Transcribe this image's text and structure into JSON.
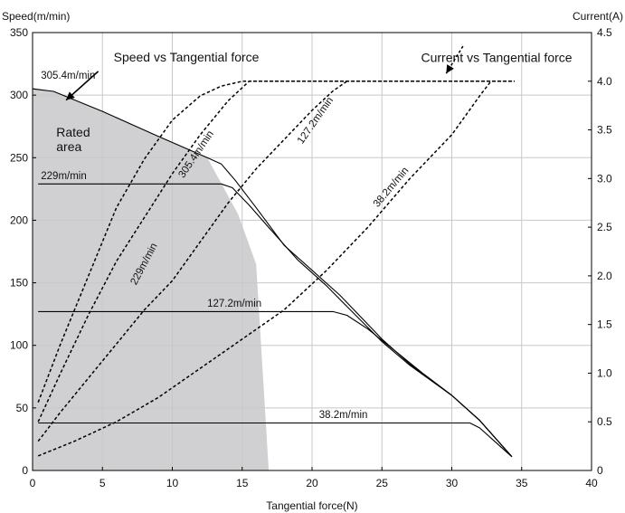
{
  "chart_data": {
    "type": "line",
    "xlabel": "Tangential force(N)",
    "ylabel_left": "Speed(m/min)",
    "ylabel_right": "Current(A)",
    "xlim": [
      0,
      40
    ],
    "ylim_left": [
      0,
      350
    ],
    "ylim_right": [
      0,
      4.5
    ],
    "x_ticks": [
      0,
      5,
      10,
      15,
      20,
      25,
      30,
      35,
      40
    ],
    "y_left_ticks": [
      0,
      50,
      100,
      150,
      200,
      250,
      300,
      350
    ],
    "y_right_ticks": [
      0,
      0.5,
      1.0,
      1.5,
      2.0,
      2.5,
      3.0,
      3.5,
      4.0,
      4.5
    ],
    "y_right_tick_labels": [
      "0",
      "0.5",
      "1.0",
      "1.5",
      "2.0",
      "2.5",
      "3.0",
      "3.5",
      "4.0",
      "4.5"
    ],
    "grid": true,
    "rated_area": {
      "label": "Rated\narea",
      "polygon": [
        [
          0,
          0
        ],
        [
          0,
          306
        ],
        [
          1.5,
          303
        ],
        [
          5,
          287
        ],
        [
          9,
          267
        ],
        [
          12.5,
          250
        ],
        [
          14.7,
          205
        ],
        [
          16,
          165
        ],
        [
          16.9,
          0
        ]
      ]
    },
    "series": [
      {
        "axis": "left",
        "style": "solid",
        "points": [
          [
            0,
            305
          ],
          [
            1.5,
            303
          ],
          [
            5,
            287
          ],
          [
            9,
            267
          ],
          [
            12.5,
            250
          ],
          [
            13.5,
            245
          ],
          [
            14.5,
            232
          ],
          [
            16,
            210
          ],
          [
            18,
            180
          ],
          [
            20,
            160
          ],
          [
            22,
            140
          ],
          [
            25,
            105
          ],
          [
            27,
            85
          ],
          [
            30,
            60
          ],
          [
            32,
            40
          ],
          [
            34.3,
            11
          ]
        ]
      },
      {
        "axis": "left",
        "style": "solid",
        "points": [
          [
            0.4,
            229
          ],
          [
            13.5,
            229
          ],
          [
            14.3,
            226
          ],
          [
            15.5,
            212
          ],
          [
            17,
            193
          ],
          [
            19,
            168
          ],
          [
            21,
            148
          ],
          [
            22.5,
            131
          ],
          [
            25,
            103
          ],
          [
            27,
            84
          ],
          [
            30,
            60
          ],
          [
            32,
            40
          ],
          [
            34.3,
            11
          ]
        ]
      },
      {
        "axis": "left",
        "style": "solid",
        "points": [
          [
            0.4,
            127
          ],
          [
            21.5,
            127
          ],
          [
            22.5,
            124
          ],
          [
            24,
            113
          ],
          [
            26,
            95
          ],
          [
            28,
            77
          ],
          [
            30,
            60
          ],
          [
            32,
            40
          ],
          [
            34.3,
            11
          ]
        ]
      },
      {
        "axis": "left",
        "style": "solid",
        "points": [
          [
            0.4,
            38
          ],
          [
            31.3,
            38
          ],
          [
            32,
            34
          ],
          [
            33,
            24
          ],
          [
            34.3,
            11
          ]
        ]
      },
      {
        "axis": "right",
        "style": "dashed",
        "points": [
          [
            0.4,
            0.7
          ],
          [
            2,
            1.3
          ],
          [
            4,
            2.0
          ],
          [
            6,
            2.7
          ],
          [
            8,
            3.2
          ],
          [
            10,
            3.6
          ],
          [
            12,
            3.85
          ],
          [
            13.5,
            3.95
          ],
          [
            15,
            4.0
          ],
          [
            34.5,
            4.0
          ]
        ]
      },
      {
        "axis": "right",
        "style": "dashed",
        "points": [
          [
            0.4,
            0.5
          ],
          [
            2,
            1.0
          ],
          [
            4,
            1.6
          ],
          [
            6,
            2.15
          ],
          [
            8,
            2.6
          ],
          [
            10,
            3.05
          ],
          [
            12,
            3.45
          ],
          [
            14,
            3.8
          ],
          [
            15.5,
            4.0
          ],
          [
            34.5,
            4.0
          ]
        ]
      },
      {
        "axis": "right",
        "style": "dashed",
        "points": [
          [
            0.4,
            0.3
          ],
          [
            2,
            0.6
          ],
          [
            4,
            0.95
          ],
          [
            6,
            1.3
          ],
          [
            8,
            1.65
          ],
          [
            10,
            1.95
          ],
          [
            12,
            2.35
          ],
          [
            14,
            2.75
          ],
          [
            16,
            3.1
          ],
          [
            18,
            3.4
          ],
          [
            20,
            3.7
          ],
          [
            21.5,
            3.9
          ],
          [
            22.5,
            4.0
          ]
        ]
      },
      {
        "axis": "right",
        "style": "dashed",
        "points": [
          [
            0.4,
            0.15
          ],
          [
            3,
            0.3
          ],
          [
            6,
            0.5
          ],
          [
            9,
            0.75
          ],
          [
            12,
            1.05
          ],
          [
            15,
            1.35
          ],
          [
            18,
            1.65
          ],
          [
            21,
            2.05
          ],
          [
            24,
            2.5
          ],
          [
            27,
            3.0
          ],
          [
            30,
            3.45
          ],
          [
            32,
            3.85
          ],
          [
            32.8,
            4.0
          ]
        ]
      }
    ],
    "annotations": [
      {
        "text": "305.4m/min",
        "x": 0.6,
        "y": 313,
        "size": 11.5
      },
      {
        "text": "Speed vs Tangential force",
        "x": 5.8,
        "y": 327,
        "size": 14
      },
      {
        "text": "229m/min",
        "x": 0.6,
        "y": 233,
        "size": 11.5
      },
      {
        "text": "127.2m/min",
        "x": 12.5,
        "y": 131,
        "size": 11.5
      },
      {
        "text": "38.2m/min",
        "x": 20.5,
        "y": 42,
        "size": 11.5
      },
      {
        "text": "Current vs Tangential force",
        "x": 27.8,
        "y": 4.2,
        "axis": "right",
        "size": 14
      },
      {
        "text": "305.4m/min",
        "x": 10.8,
        "y": 3.0,
        "axis": "right",
        "size": 11.5,
        "angle": -56
      },
      {
        "text": "229m/min",
        "x": 7.4,
        "y": 1.9,
        "axis": "right",
        "size": 11.5,
        "angle": -62
      },
      {
        "text": "127.2m/min",
        "x": 19.3,
        "y": 3.35,
        "axis": "right",
        "size": 11.5,
        "angle": -55
      },
      {
        "text": "38.2m/min",
        "x": 24.7,
        "y": 2.7,
        "axis": "right",
        "size": 11.5,
        "angle": -50
      },
      {
        "text": "Rated\narea",
        "x": 1.7,
        "y": 267,
        "size": 14
      }
    ],
    "arrows": [
      {
        "from": [
          4.7,
          319
        ],
        "to": [
          2.4,
          296
        ],
        "axis": "left",
        "style": "solid"
      },
      {
        "from": [
          30.8,
          4.36
        ],
        "to": [
          29.6,
          4.08
        ],
        "axis": "right",
        "style": "dashed"
      }
    ],
    "colors": {
      "rated_area": "#d0d0d2",
      "line": "#000000",
      "grid": "#c8c8c8"
    }
  }
}
